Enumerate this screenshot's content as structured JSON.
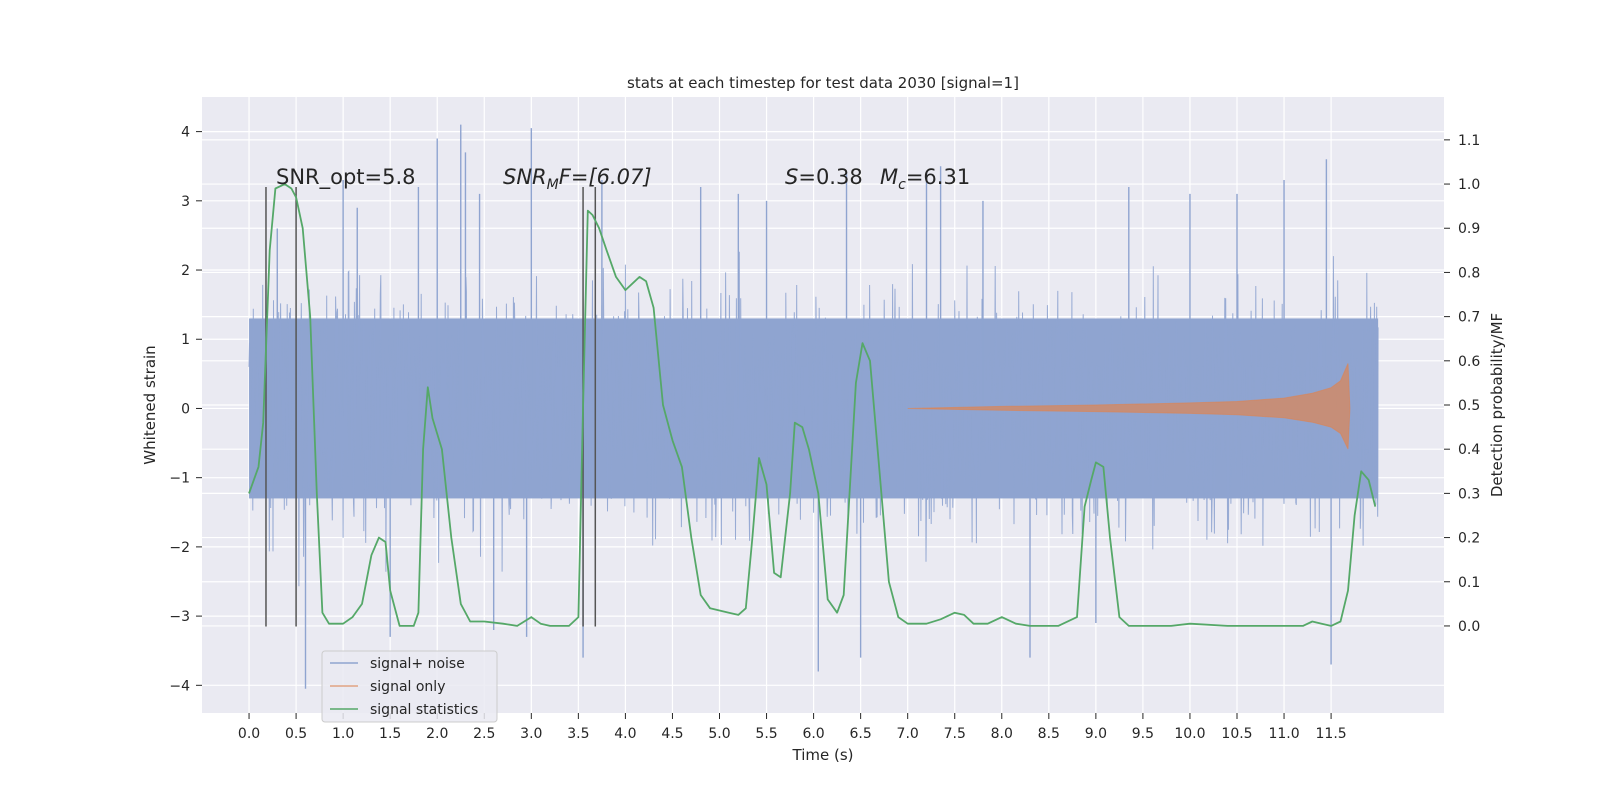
{
  "chart_data": {
    "type": "line",
    "title": "stats at each timestep for test data 2030 [signal=1]",
    "xlabel": "Time (s)",
    "ylabel": "Whitened strain",
    "y2label": "Detection probability/MF",
    "xlim": [
      -0.5,
      12.7
    ],
    "ylim": [
      -4.4,
      4.5
    ],
    "y2lim": [
      -0.197,
      1.197
    ],
    "x_ticks": [
      0.0,
      0.5,
      1.0,
      1.5,
      2.0,
      2.5,
      3.0,
      3.5,
      4.0,
      4.5,
      5.0,
      5.5,
      6.0,
      6.5,
      7.0,
      7.5,
      8.0,
      8.5,
      9.0,
      9.5,
      10.0,
      10.5,
      11.0,
      11.5
    ],
    "x_tick_labels": [
      "0.0",
      "0.5",
      "1.0",
      "1.5",
      "2.0",
      "2.5",
      "3.0",
      "3.5",
      "4.0",
      "4.5",
      "5.0",
      "5.5",
      "6.0",
      "6.5",
      "7.0",
      "7.5",
      "8.0",
      "8.5",
      "9.0",
      "9.5",
      "10.0",
      "10.5",
      "11.0",
      "11.5"
    ],
    "y_ticks": [
      -4,
      -3,
      -2,
      -1,
      0,
      1,
      2,
      3,
      4
    ],
    "y_tick_labels": [
      "−4",
      "−3",
      "−2",
      "−1",
      "0",
      "1",
      "2",
      "3",
      "4"
    ],
    "y2_ticks": [
      0.0,
      0.1,
      0.2,
      0.3,
      0.4,
      0.5,
      0.6,
      0.7,
      0.8,
      0.9,
      1.0,
      1.1
    ],
    "y2_tick_labels": [
      "0.0",
      "0.1",
      "0.2",
      "0.3",
      "0.4",
      "0.5",
      "0.6",
      "0.7",
      "0.8",
      "0.9",
      "1.0",
      "1.1"
    ],
    "grid": true,
    "legend_placement": "lower-left",
    "annotations": {
      "snr_opt": "SNR_opt=5.8",
      "snr_mf": "SNR",
      "snr_mf_sub": "M",
      "snr_mf_rest": "F=[6.07]",
      "s_sym": "S",
      "s_val": "=0.38",
      "mc_sym": "M",
      "mc_sub": "c",
      "mc_val": "=6.31"
    },
    "event_lines_x": [
      0.18,
      0.5,
      3.55,
      3.68
    ],
    "series": [
      {
        "name": "signal+ noise",
        "color": "#8fa4d0",
        "t_range": [
          0.0,
          12.0
        ],
        "core_band": [
          -1.3,
          1.3
        ],
        "spikes": [
          {
            "x": 0.3,
            "y": 2.6
          },
          {
            "x": 0.6,
            "y": -4.05
          },
          {
            "x": 1.0,
            "y": 3.3
          },
          {
            "x": 1.15,
            "y": 2.9
          },
          {
            "x": 1.5,
            "y": -3.3
          },
          {
            "x": 1.8,
            "y": 3.2
          },
          {
            "x": 2.0,
            "y": 3.9
          },
          {
            "x": 2.25,
            "y": 4.1
          },
          {
            "x": 2.3,
            "y": 3.7
          },
          {
            "x": 2.45,
            "y": 3.1
          },
          {
            "x": 2.6,
            "y": -3.2
          },
          {
            "x": 2.95,
            "y": -3.3
          },
          {
            "x": 3.0,
            "y": 4.05
          },
          {
            "x": 3.55,
            "y": -3.6
          },
          {
            "x": 3.75,
            "y": 3.3
          },
          {
            "x": 4.8,
            "y": 3.2
          },
          {
            "x": 5.2,
            "y": 3.1
          },
          {
            "x": 5.5,
            "y": 3.0
          },
          {
            "x": 6.05,
            "y": -3.8
          },
          {
            "x": 6.35,
            "y": 3.4
          },
          {
            "x": 6.5,
            "y": -3.6
          },
          {
            "x": 7.2,
            "y": 3.4
          },
          {
            "x": 7.35,
            "y": 3.5
          },
          {
            "x": 7.8,
            "y": 3.0
          },
          {
            "x": 8.3,
            "y": -3.6
          },
          {
            "x": 9.0,
            "y": -3.1
          },
          {
            "x": 9.35,
            "y": 3.2
          },
          {
            "x": 10.0,
            "y": 3.1
          },
          {
            "x": 10.5,
            "y": 3.1
          },
          {
            "x": 11.0,
            "y": 3.3
          },
          {
            "x": 11.45,
            "y": 3.6
          },
          {
            "x": 11.5,
            "y": -3.7
          }
        ]
      },
      {
        "name": "signal only",
        "color": "#dd8452",
        "envelope": [
          {
            "x": 7.0,
            "y": 0.0
          },
          {
            "x": 8.0,
            "y": 0.03
          },
          {
            "x": 9.0,
            "y": 0.05
          },
          {
            "x": 10.0,
            "y": 0.08
          },
          {
            "x": 10.5,
            "y": 0.1
          },
          {
            "x": 11.0,
            "y": 0.15
          },
          {
            "x": 11.3,
            "y": 0.22
          },
          {
            "x": 11.5,
            "y": 0.3
          },
          {
            "x": 11.6,
            "y": 0.4
          },
          {
            "x": 11.68,
            "y": 0.65
          },
          {
            "x": 11.7,
            "y": 0.0
          }
        ]
      },
      {
        "name": "signal statistics",
        "color": "#55a868",
        "axis": "right",
        "points": [
          {
            "x": 0.0,
            "y": 0.3
          },
          {
            "x": 0.1,
            "y": 0.36
          },
          {
            "x": 0.15,
            "y": 0.46
          },
          {
            "x": 0.22,
            "y": 0.85
          },
          {
            "x": 0.28,
            "y": 0.99
          },
          {
            "x": 0.38,
            "y": 1.0
          },
          {
            "x": 0.45,
            "y": 0.99
          },
          {
            "x": 0.5,
            "y": 0.97
          },
          {
            "x": 0.57,
            "y": 0.9
          },
          {
            "x": 0.65,
            "y": 0.7
          },
          {
            "x": 0.72,
            "y": 0.3
          },
          {
            "x": 0.78,
            "y": 0.03
          },
          {
            "x": 0.85,
            "y": 0.005
          },
          {
            "x": 1.0,
            "y": 0.005
          },
          {
            "x": 1.1,
            "y": 0.02
          },
          {
            "x": 1.2,
            "y": 0.05
          },
          {
            "x": 1.3,
            "y": 0.16
          },
          {
            "x": 1.38,
            "y": 0.2
          },
          {
            "x": 1.45,
            "y": 0.19
          },
          {
            "x": 1.5,
            "y": 0.08
          },
          {
            "x": 1.6,
            "y": 0.0
          },
          {
            "x": 1.75,
            "y": 0.0
          },
          {
            "x": 1.8,
            "y": 0.03
          },
          {
            "x": 1.85,
            "y": 0.4
          },
          {
            "x": 1.9,
            "y": 0.54
          },
          {
            "x": 1.95,
            "y": 0.47
          },
          {
            "x": 2.05,
            "y": 0.4
          },
          {
            "x": 2.15,
            "y": 0.2
          },
          {
            "x": 2.25,
            "y": 0.05
          },
          {
            "x": 2.35,
            "y": 0.01
          },
          {
            "x": 2.5,
            "y": 0.01
          },
          {
            "x": 2.7,
            "y": 0.005
          },
          {
            "x": 2.85,
            "y": 0.0
          },
          {
            "x": 3.0,
            "y": 0.02
          },
          {
            "x": 3.1,
            "y": 0.005
          },
          {
            "x": 3.2,
            "y": 0.0
          },
          {
            "x": 3.4,
            "y": 0.0
          },
          {
            "x": 3.5,
            "y": 0.02
          },
          {
            "x": 3.55,
            "y": 0.5
          },
          {
            "x": 3.6,
            "y": 0.94
          },
          {
            "x": 3.65,
            "y": 0.93
          },
          {
            "x": 3.72,
            "y": 0.9
          },
          {
            "x": 3.8,
            "y": 0.85
          },
          {
            "x": 3.9,
            "y": 0.79
          },
          {
            "x": 4.0,
            "y": 0.76
          },
          {
            "x": 4.1,
            "y": 0.78
          },
          {
            "x": 4.15,
            "y": 0.79
          },
          {
            "x": 4.22,
            "y": 0.78
          },
          {
            "x": 4.3,
            "y": 0.72
          },
          {
            "x": 4.4,
            "y": 0.5
          },
          {
            "x": 4.5,
            "y": 0.42
          },
          {
            "x": 4.6,
            "y": 0.36
          },
          {
            "x": 4.7,
            "y": 0.2
          },
          {
            "x": 4.8,
            "y": 0.07
          },
          {
            "x": 4.9,
            "y": 0.04
          },
          {
            "x": 5.1,
            "y": 0.03
          },
          {
            "x": 5.2,
            "y": 0.025
          },
          {
            "x": 5.28,
            "y": 0.04
          },
          {
            "x": 5.35,
            "y": 0.2
          },
          {
            "x": 5.42,
            "y": 0.38
          },
          {
            "x": 5.5,
            "y": 0.32
          },
          {
            "x": 5.58,
            "y": 0.12
          },
          {
            "x": 5.65,
            "y": 0.11
          },
          {
            "x": 5.75,
            "y": 0.3
          },
          {
            "x": 5.8,
            "y": 0.46
          },
          {
            "x": 5.88,
            "y": 0.45
          },
          {
            "x": 5.95,
            "y": 0.4
          },
          {
            "x": 6.05,
            "y": 0.3
          },
          {
            "x": 6.15,
            "y": 0.06
          },
          {
            "x": 6.25,
            "y": 0.03
          },
          {
            "x": 6.32,
            "y": 0.07
          },
          {
            "x": 6.45,
            "y": 0.55
          },
          {
            "x": 6.52,
            "y": 0.64
          },
          {
            "x": 6.6,
            "y": 0.6
          },
          {
            "x": 6.7,
            "y": 0.35
          },
          {
            "x": 6.8,
            "y": 0.1
          },
          {
            "x": 6.9,
            "y": 0.02
          },
          {
            "x": 7.0,
            "y": 0.005
          },
          {
            "x": 7.2,
            "y": 0.005
          },
          {
            "x": 7.35,
            "y": 0.015
          },
          {
            "x": 7.5,
            "y": 0.03
          },
          {
            "x": 7.6,
            "y": 0.025
          },
          {
            "x": 7.7,
            "y": 0.005
          },
          {
            "x": 7.85,
            "y": 0.005
          },
          {
            "x": 8.0,
            "y": 0.02
          },
          {
            "x": 8.15,
            "y": 0.005
          },
          {
            "x": 8.3,
            "y": 0.0
          },
          {
            "x": 8.6,
            "y": 0.0
          },
          {
            "x": 8.8,
            "y": 0.02
          },
          {
            "x": 8.88,
            "y": 0.27
          },
          {
            "x": 8.95,
            "y": 0.33
          },
          {
            "x": 9.0,
            "y": 0.37
          },
          {
            "x": 9.08,
            "y": 0.36
          },
          {
            "x": 9.15,
            "y": 0.2
          },
          {
            "x": 9.25,
            "y": 0.02
          },
          {
            "x": 9.35,
            "y": 0.0
          },
          {
            "x": 9.8,
            "y": 0.0
          },
          {
            "x": 10.0,
            "y": 0.005
          },
          {
            "x": 10.4,
            "y": 0.0
          },
          {
            "x": 11.0,
            "y": 0.0
          },
          {
            "x": 11.2,
            "y": 0.0
          },
          {
            "x": 11.3,
            "y": 0.01
          },
          {
            "x": 11.4,
            "y": 0.005
          },
          {
            "x": 11.5,
            "y": 0.0
          },
          {
            "x": 11.6,
            "y": 0.01
          },
          {
            "x": 11.68,
            "y": 0.08
          },
          {
            "x": 11.75,
            "y": 0.25
          },
          {
            "x": 11.82,
            "y": 0.35
          },
          {
            "x": 11.9,
            "y": 0.33
          },
          {
            "x": 11.97,
            "y": 0.27
          }
        ]
      }
    ]
  }
}
